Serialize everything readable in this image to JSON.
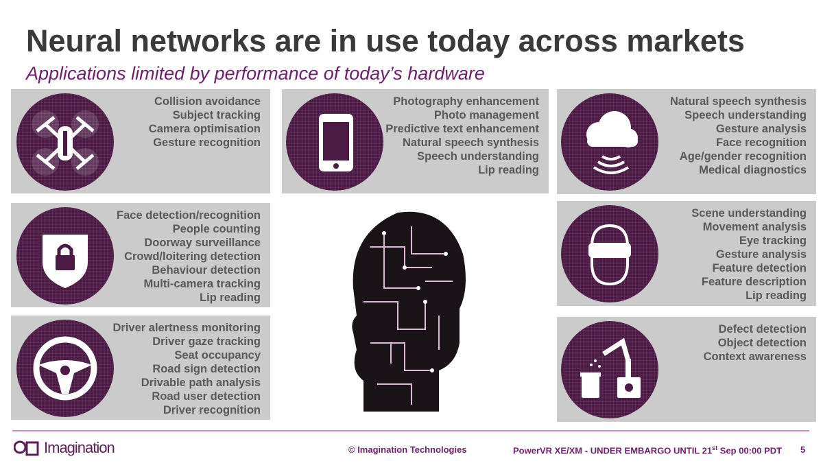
{
  "title": "Neural networks are in use today across markets",
  "subtitle": "Applications limited by performance of today’s hardware",
  "panels": [
    {
      "icon": "drone-icon",
      "items": [
        "Collision avoidance",
        "Subject tracking",
        "Camera optimisation",
        "Gesture recognition"
      ]
    },
    {
      "icon": "smartphone-icon",
      "items": [
        "Photography enhancement",
        "Photo management",
        "Predictive text enhancement",
        "Natural speech synthesis",
        "Speech understanding",
        "Lip reading"
      ]
    },
    {
      "icon": "cloud-wireless-icon",
      "items": [
        "Natural speech synthesis",
        "Speech understanding",
        "Gesture analysis",
        "Face recognition",
        "Age/gender recognition",
        "Medical diagnostics"
      ]
    },
    {
      "icon": "shield-lock-icon",
      "items": [
        "Face detection/recognition",
        "People counting",
        "Doorway surveillance",
        "Crowd/loitering detection",
        "Behaviour detection",
        "Multi-camera tracking",
        "Lip reading"
      ]
    },
    {
      "icon": "vr-headset-icon",
      "items": [
        "Scene understanding",
        "Movement analysis",
        "Eye tracking",
        "Gesture analysis",
        "Feature detection",
        "Feature description",
        "Lip reading"
      ]
    },
    {
      "icon": "steering-wheel-icon",
      "items": [
        "Driver alertness monitoring",
        "Driver gaze tracking",
        "Seat occupancy",
        "Road sign detection",
        "Drivable path analysis",
        "Road user detection",
        "Driver recognition"
      ]
    },
    {
      "icon": "robot-arm-icon",
      "items": [
        "Defect detection",
        "Object detection",
        "Context awareness"
      ]
    }
  ],
  "footer": {
    "logo": "Imagination",
    "copyright": "© Imagination Technologies",
    "embargo_pre": "PowerVR XE/XM - UNDER EMBARGO UNTIL 21",
    "embargo_sup": "st",
    "embargo_post": " Sep 00:00 PDT",
    "page": "5"
  },
  "colors": {
    "accent": "#6d1f6b",
    "circle": "#4b1a45",
    "panel": "#cbcbcb"
  }
}
